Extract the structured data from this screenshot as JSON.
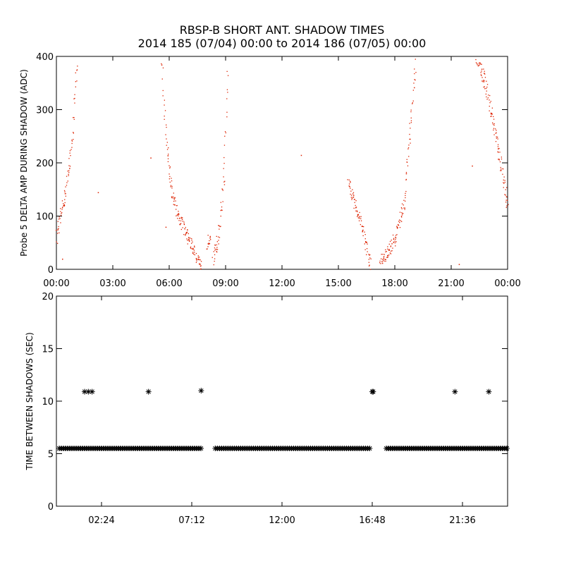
{
  "title_line1": "RBSP-B SHORT ANT. SHADOW TIMES",
  "title_line2": "2014 185 (07/04) 00:00 to 2014 186 (07/05) 00:00",
  "colors": {
    "points_top": "#dd2200",
    "points_bottom": "#000000",
    "axes": "#000000"
  },
  "chart_data": [
    {
      "type": "scatter",
      "ylabel": "Probe 5 DELTA AMP DURING SHADOW (ADC)",
      "xlim_hours": [
        0,
        24
      ],
      "ylim": [
        0,
        400
      ],
      "xtick_hours": [
        0,
        3,
        6,
        9,
        12,
        15,
        18,
        21,
        24
      ],
      "xtick_labels": [
        "00:00",
        "03:00",
        "06:00",
        "09:00",
        "12:00",
        "15:00",
        "18:00",
        "21:00",
        "00:00"
      ],
      "yticks": [
        0,
        100,
        200,
        300,
        400
      ],
      "marker": "dot",
      "segments": [
        {
          "x": [
            0.0,
            0.5,
            0.8,
            1.1
          ],
          "y": [
            60,
            150,
            230,
            400
          ]
        },
        {
          "x": [
            5.6,
            5.8,
            6.1,
            6.5,
            7.0,
            7.5,
            7.7
          ],
          "y": [
            400,
            250,
            150,
            100,
            60,
            20,
            5
          ]
        },
        {
          "x": [
            8.0,
            8.2
          ],
          "y": [
            50,
            70
          ]
        },
        {
          "x": [
            8.3,
            8.6,
            8.9,
            9.1
          ],
          "y": [
            20,
            60,
            180,
            390
          ]
        },
        {
          "x": [
            15.5,
            15.8,
            16.2,
            16.5,
            16.7
          ],
          "y": [
            160,
            130,
            90,
            40,
            5
          ]
        },
        {
          "x": [
            17.2,
            17.6,
            18.0,
            18.5,
            18.9,
            19.1
          ],
          "y": [
            15,
            30,
            60,
            130,
            300,
            390
          ]
        },
        {
          "x": [
            22.3,
            22.8,
            23.3,
            23.6,
            24.0
          ],
          "y": [
            400,
            350,
            260,
            200,
            120
          ]
        }
      ],
      "isolated": [
        {
          "x": 0.3,
          "y": 20
        },
        {
          "x": 2.2,
          "y": 145
        },
        {
          "x": 5.0,
          "y": 210
        },
        {
          "x": 5.8,
          "y": 80
        },
        {
          "x": 13.0,
          "y": 215
        },
        {
          "x": 21.4,
          "y": 10
        },
        {
          "x": 22.1,
          "y": 195
        }
      ]
    },
    {
      "type": "scatter",
      "ylabel": "TIME BETWEEN SHADOWS (SEC)",
      "xlim_hours": [
        0,
        24
      ],
      "ylim": [
        0,
        20
      ],
      "xtick_hours": [
        2.4,
        7.2,
        12.0,
        16.8,
        21.6
      ],
      "xtick_labels": [
        "02:24",
        "07:12",
        "12:00",
        "16:48",
        "21:36"
      ],
      "yticks": [
        0,
        5,
        10,
        15,
        20
      ],
      "marker": "asterisk",
      "baseline_value": 5.5,
      "baseline_ranges_hours": [
        [
          0,
          7.75
        ],
        [
          8.3,
          16.8
        ],
        [
          17.4,
          24
        ]
      ],
      "outliers": [
        {
          "x": 1.5,
          "y": 10.9
        },
        {
          "x": 1.7,
          "y": 10.9
        },
        {
          "x": 1.9,
          "y": 10.9
        },
        {
          "x": 4.9,
          "y": 10.9
        },
        {
          "x": 7.7,
          "y": 11.0
        },
        {
          "x": 16.8,
          "y": 10.9
        },
        {
          "x": 16.85,
          "y": 10.9
        },
        {
          "x": 21.2,
          "y": 10.9
        },
        {
          "x": 23.0,
          "y": 10.9
        }
      ]
    }
  ]
}
